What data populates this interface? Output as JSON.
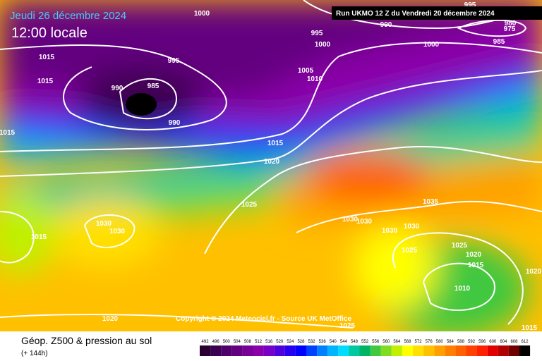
{
  "header": {
    "date": "Jeudi 26 décembre 2024",
    "time": "12:00 locale",
    "run": "Run UKMO 12 Z du Vendredi 20 décembre 2024"
  },
  "copyright": "Copyright © 2024 Meteociel.fr - Source UK MetOffice",
  "footer": {
    "title": "Géop. Z500 & pression au sol",
    "lead": "(+ 144h)"
  },
  "isobar_labels": [
    "1000",
    "990",
    "995",
    "1000",
    "995",
    "980",
    "975",
    "985",
    "1000",
    "1015",
    "1015",
    "995",
    "990",
    "985",
    "990",
    "1005",
    "1010",
    "1015",
    "1015",
    "1020",
    "1025",
    "1030",
    "1030",
    "1015",
    "1035",
    "1030",
    "1030",
    "1030",
    "1030",
    "1025",
    "1025",
    "1020",
    "1015",
    "1020",
    "1010",
    "1020",
    "1025",
    "1015"
  ],
  "legend": {
    "values": [
      492,
      496,
      500,
      504,
      508,
      512,
      516,
      520,
      524,
      528,
      532,
      536,
      540,
      544,
      548,
      552,
      556,
      560,
      564,
      568,
      572,
      576,
      580,
      584,
      588,
      592,
      596,
      600,
      604,
      608,
      612
    ],
    "colors": [
      "#2a0030",
      "#3c0050",
      "#50006a",
      "#640080",
      "#780096",
      "#8c00aa",
      "#7800c8",
      "#5000dc",
      "#2800f0",
      "#0000ff",
      "#0040ff",
      "#0080ff",
      "#00b4ff",
      "#00dcff",
      "#00c8a0",
      "#00b464",
      "#40c840",
      "#80dc20",
      "#c0f000",
      "#ffff00",
      "#ffe000",
      "#ffc000",
      "#ffa000",
      "#ff8000",
      "#ff6000",
      "#ff4000",
      "#ff2000",
      "#e00000",
      "#b00000",
      "#700000",
      "#000000"
    ]
  }
}
